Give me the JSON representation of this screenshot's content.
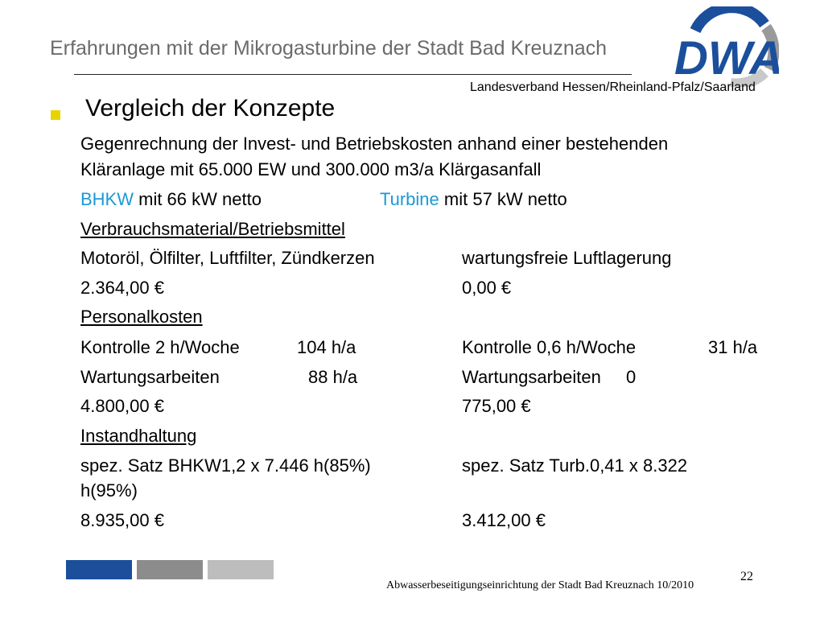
{
  "header": {
    "title": "Erfahrungen mit der Mikrogasturbine der Stadt Bad Kreuznach",
    "org_subtitle": "Landesverband Hessen/Rheinland-Pfalz/Saarland",
    "logo_text": "DWA",
    "accent_color": "#1b4f9c"
  },
  "section": {
    "heading": "Vergleich der Konzepte",
    "intro_line1": "Gegenrechnung der Invest- und Betriebskosten anhand einer bestehenden",
    "intro_line2": "Kläranlage mit 65.000 EW und 300.000 m3/a Klärgasanfall",
    "bhkw_word": "BHKW",
    "bhkw_rest": " mit 66 kW netto",
    "turbine_word": "Turbine",
    "turbine_rest": " mit 57 kW netto"
  },
  "verbrauch": {
    "title": "Verbrauchsmaterial/Betriebsmittel",
    "left_item": "Motoröl, Ölfilter, Luftfilter, Zündkerzen",
    "right_item": "wartungsfreie Luftlagerung",
    "left_cost": "2.364,00 €",
    "right_cost": "0,00 €"
  },
  "personal": {
    "title": "Personalkosten",
    "left_row1_label": "Kontrolle 2 h/Woche",
    "left_row1_value": "104 h/a",
    "right_row1_label": "Kontrolle 0,6 h/Woche",
    "right_row1_value": "31 h/a",
    "left_row2_label": "Wartungsarbeiten",
    "left_row2_value": "88 h/a",
    "right_row2_label": "Wartungsarbeiten",
    "right_row2_value": "0",
    "left_cost": "4.800,00 €",
    "right_cost": "775,00 €"
  },
  "instand": {
    "title": "Instandhaltung",
    "left_line1": "spez. Satz BHKW1,2 x 7.446 h(85%)",
    "left_line2": "h(95%)",
    "right_line1": "spez. Satz Turb.0,41 x 8.322",
    "left_cost": "8.935,00 €",
    "right_cost": "3.412,00 €"
  },
  "footer": {
    "page_number": "22",
    "text": "Abwasserbeseitigungseinrichtung der Stadt Bad Kreuznach 10/2010",
    "bar_colors": [
      "#1b4f9c",
      "#8c8c8c",
      "#bdbdbd"
    ]
  }
}
